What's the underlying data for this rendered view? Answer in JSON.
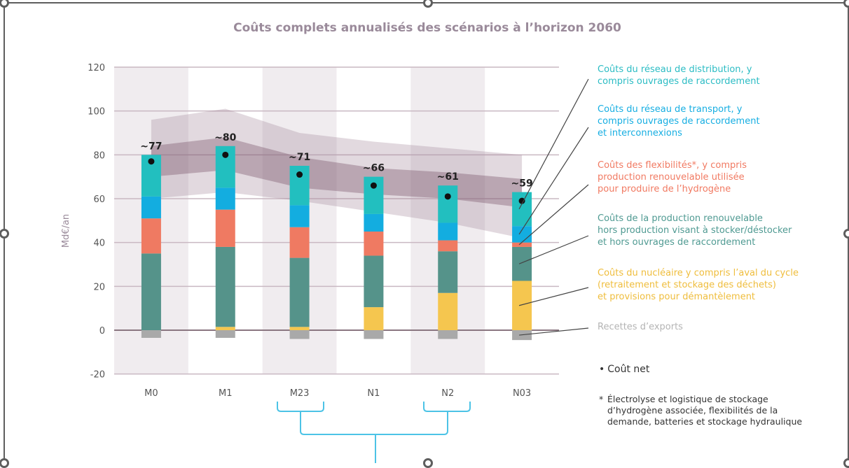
{
  "chart_data": {
    "type": "bar",
    "stacked": true,
    "title": "Coûts complets annualisés des scénarios à l’horizon 2060",
    "xlabel": "",
    "ylabel": "Md€/an",
    "ylim": [
      -20,
      120
    ],
    "yticks": [
      -20,
      0,
      20,
      40,
      60,
      80,
      100,
      120
    ],
    "grid": true,
    "categories": [
      "M0",
      "M1",
      "M23",
      "N1",
      "N2",
      "N03"
    ],
    "series": [
      {
        "name": "Recettes d’exports",
        "color": "#a9a9a9",
        "values": [
          -3.5,
          -3.5,
          -4,
          -4,
          -4,
          -4.5
        ]
      },
      {
        "name": "Coûts du nucléaire y compris l’aval du cycle (retraitement et stockage des déchets) et provisions pour démantèlement",
        "color": "#f5c64f",
        "values": [
          0,
          1.5,
          1.5,
          10.5,
          17,
          22.5
        ]
      },
      {
        "name": "Coûts de la production renouvelable hors production visant à stocker/déstocker et hors ouvrages de raccordement",
        "color": "#55938a",
        "values": [
          35,
          36.5,
          31.5,
          23.5,
          19,
          15.5
        ]
      },
      {
        "name": "Coûts des flexibilités*, y compris production renouvelable utilisée pour produire de l’hydrogène",
        "color": "#ef7a62",
        "values": [
          16,
          17,
          14,
          11,
          5,
          2
        ]
      },
      {
        "name": "Coûts du réseau de transport, y compris ouvrages de raccordement et interconnexions",
        "color": "#13ade0",
        "values": [
          10,
          10,
          10,
          8,
          8,
          7.5
        ]
      },
      {
        "name": "Coûts du réseau de distribution, y compris ouvrages de raccordement",
        "color": "#22bfbf",
        "values": [
          19,
          19,
          18,
          17,
          17,
          15.5
        ]
      }
    ],
    "net_cost": {
      "name": "Coût net",
      "values": [
        77,
        80,
        71,
        66,
        61,
        59
      ],
      "labels": [
        "~77",
        "~80",
        "~71",
        "~66",
        "~61",
        "~59"
      ]
    },
    "ranges": {
      "outer": {
        "low": [
          60,
          63,
          59,
          54,
          49,
          42
        ],
        "high": [
          96,
          101,
          90,
          86,
          83,
          80
        ]
      },
      "inner": {
        "low": [
          70,
          73,
          65,
          62,
          60,
          56
        ],
        "high": [
          84,
          88,
          79,
          74,
          72,
          69
        ]
      }
    },
    "legend_placement": "right",
    "notes": [
      "• Coût net",
      "* Électrolyse et logistique de stockage d’hydrogène associée, flexibilités de la demande, batteries et stockage hydraulique"
    ]
  },
  "legend": [
    {
      "lines": [
        "Coûts du réseau de distribution, y",
        "compris ouvrages de raccordement"
      ],
      "color": "#2bbcc4"
    },
    {
      "lines": [
        "Coûts du réseau de transport, y",
        "compris ouvrages de raccordement",
        "et interconnexions"
      ],
      "color": "#16aee2"
    },
    {
      "lines": [
        "Coûts des flexibilités*, y compris",
        "production renouvelable utilisée",
        "pour produire de l’hydrogène"
      ],
      "color": "#f17a62"
    },
    {
      "lines": [
        "Coûts de la production renouvelable",
        "hors production visant à stocker/déstocker",
        "et hors ouvrages de raccordement"
      ],
      "color": "#4f9a92"
    },
    {
      "lines": [
        "Coûts du nucléaire y compris l’aval du cycle",
        "(retraitement et stockage des déchets)",
        "et provisions pour démantèlement"
      ],
      "color": "#efbd3c"
    },
    {
      "lines": [
        "Recettes d’exports"
      ],
      "color": "#b4b4b4"
    }
  ],
  "notes": {
    "net_cost": "Coût net",
    "footnote_marker": "*",
    "footnote_lines": [
      "Électrolyse et logistique de stockage",
      "d’hydrogène associée, flexibilités de la",
      "demande, batteries et stockage hydraulique"
    ]
  }
}
